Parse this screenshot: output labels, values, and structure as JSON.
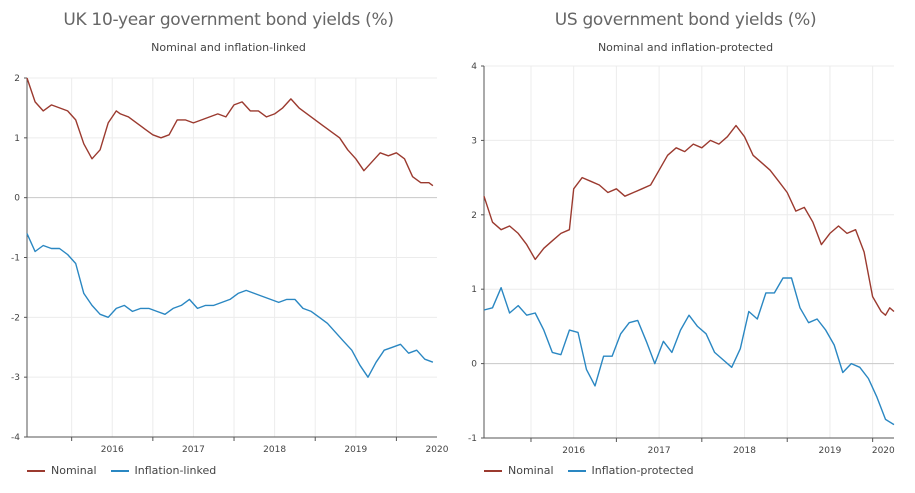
{
  "colors": {
    "nominal": "#9b3a2f",
    "inflation": "#2a87c2",
    "grid": "#ececec",
    "axis": "#555555"
  },
  "chart_data": [
    {
      "type": "line",
      "title": "UK 10-year government bond yields (%)",
      "subtitle": "Nominal and inflation-linked",
      "xlabel": "",
      "ylabel": "",
      "xlim": [
        2015.45,
        2020.5
      ],
      "ylim": [
        -4,
        2
      ],
      "y_ticks": [
        "2",
        "1",
        "0",
        "-1",
        "-2",
        "-3",
        "-4"
      ],
      "x_ticks": [
        "2016",
        "2017",
        "2018",
        "2019",
        "2020"
      ],
      "grid": true,
      "legend_position": "bottom-left",
      "series": [
        {
          "name": "Nominal",
          "x": [
            2015.45,
            2015.55,
            2015.65,
            2015.75,
            2015.85,
            2015.95,
            2016.05,
            2016.15,
            2016.25,
            2016.35,
            2016.45,
            2016.55,
            2016.6,
            2016.7,
            2016.8,
            2016.9,
            2017.0,
            2017.1,
            2017.2,
            2017.3,
            2017.4,
            2017.5,
            2017.6,
            2017.7,
            2017.8,
            2017.9,
            2018.0,
            2018.1,
            2018.2,
            2018.3,
            2018.4,
            2018.5,
            2018.6,
            2018.7,
            2018.8,
            2018.9,
            2019.0,
            2019.1,
            2019.2,
            2019.3,
            2019.4,
            2019.5,
            2019.6,
            2019.7,
            2019.8,
            2019.9,
            2020.0,
            2020.1,
            2020.2,
            2020.3,
            2020.4,
            2020.45
          ],
          "values": [
            2.0,
            1.6,
            1.45,
            1.55,
            1.5,
            1.45,
            1.3,
            0.9,
            0.65,
            0.8,
            1.25,
            1.45,
            1.4,
            1.35,
            1.25,
            1.15,
            1.05,
            1.0,
            1.05,
            1.3,
            1.3,
            1.25,
            1.3,
            1.35,
            1.4,
            1.35,
            1.55,
            1.6,
            1.45,
            1.45,
            1.35,
            1.4,
            1.5,
            1.65,
            1.5,
            1.4,
            1.3,
            1.2,
            1.1,
            1.0,
            0.8,
            0.65,
            0.45,
            0.6,
            0.75,
            0.7,
            0.75,
            0.65,
            0.35,
            0.25,
            0.25,
            0.2
          ]
        },
        {
          "name": "Inflation-linked",
          "x": [
            2015.45,
            2015.55,
            2015.65,
            2015.75,
            2015.85,
            2015.95,
            2016.05,
            2016.15,
            2016.25,
            2016.35,
            2016.45,
            2016.55,
            2016.65,
            2016.75,
            2016.85,
            2016.95,
            2017.05,
            2017.15,
            2017.25,
            2017.35,
            2017.45,
            2017.55,
            2017.65,
            2017.75,
            2017.85,
            2017.95,
            2018.05,
            2018.15,
            2018.25,
            2018.35,
            2018.45,
            2018.55,
            2018.65,
            2018.75,
            2018.85,
            2018.95,
            2019.05,
            2019.15,
            2019.25,
            2019.35,
            2019.45,
            2019.55,
            2019.65,
            2019.75,
            2019.85,
            2019.95,
            2020.05,
            2020.15,
            2020.25,
            2020.35,
            2020.45
          ],
          "values": [
            -0.6,
            -0.9,
            -0.8,
            -0.85,
            -0.85,
            -0.95,
            -1.1,
            -1.6,
            -1.8,
            -1.95,
            -2.0,
            -1.85,
            -1.8,
            -1.9,
            -1.85,
            -1.85,
            -1.9,
            -1.95,
            -1.85,
            -1.8,
            -1.7,
            -1.85,
            -1.8,
            -1.8,
            -1.75,
            -1.7,
            -1.6,
            -1.55,
            -1.6,
            -1.65,
            -1.7,
            -1.75,
            -1.7,
            -1.7,
            -1.85,
            -1.9,
            -2.0,
            -2.1,
            -2.25,
            -2.4,
            -2.55,
            -2.8,
            -3.0,
            -2.75,
            -2.55,
            -2.5,
            -2.45,
            -2.6,
            -2.55,
            -2.7,
            -2.75
          ]
        }
      ]
    },
    {
      "type": "line",
      "title": "US government bond yields (%)",
      "subtitle": "Nominal and inflation-protected",
      "xlabel": "",
      "ylabel": "",
      "xlim": [
        2015.45,
        2020.25
      ],
      "ylim": [
        -1,
        4
      ],
      "y_ticks": [
        "4",
        "3",
        "2",
        "1",
        "0",
        "-1"
      ],
      "x_ticks": [
        "2016",
        "2017",
        "2018",
        "2019",
        "2020"
      ],
      "grid": true,
      "legend_position": "bottom-left",
      "series": [
        {
          "name": "Nominal",
          "x": [
            2015.45,
            2015.55,
            2015.65,
            2015.75,
            2015.85,
            2015.95,
            2016.05,
            2016.15,
            2016.25,
            2016.35,
            2016.45,
            2016.5,
            2016.6,
            2016.7,
            2016.8,
            2016.9,
            2017.0,
            2017.1,
            2017.2,
            2017.3,
            2017.4,
            2017.5,
            2017.6,
            2017.7,
            2017.8,
            2017.9,
            2018.0,
            2018.1,
            2018.2,
            2018.3,
            2018.4,
            2018.5,
            2018.6,
            2018.7,
            2018.8,
            2018.9,
            2019.0,
            2019.1,
            2019.2,
            2019.3,
            2019.4,
            2019.5,
            2019.6,
            2019.7,
            2019.8,
            2019.9,
            2020.0,
            2020.1,
            2020.15,
            2020.2,
            2020.25
          ],
          "values": [
            2.25,
            1.9,
            1.8,
            1.85,
            1.75,
            1.6,
            1.4,
            1.55,
            1.65,
            1.75,
            1.8,
            2.35,
            2.5,
            2.45,
            2.4,
            2.3,
            2.35,
            2.25,
            2.3,
            2.35,
            2.4,
            2.6,
            2.8,
            2.9,
            2.85,
            2.95,
            2.9,
            3.0,
            2.95,
            3.05,
            3.2,
            3.05,
            2.8,
            2.7,
            2.6,
            2.45,
            2.3,
            2.05,
            2.1,
            1.9,
            1.6,
            1.75,
            1.85,
            1.75,
            1.8,
            1.5,
            0.9,
            0.7,
            0.65,
            0.75,
            0.7
          ]
        },
        {
          "name": "Inflation-protected",
          "x": [
            2015.45,
            2015.55,
            2015.65,
            2015.75,
            2015.85,
            2015.95,
            2016.05,
            2016.15,
            2016.25,
            2016.35,
            2016.45,
            2016.55,
            2016.65,
            2016.75,
            2016.85,
            2016.95,
            2017.05,
            2017.15,
            2017.25,
            2017.35,
            2017.45,
            2017.55,
            2017.65,
            2017.75,
            2017.85,
            2017.95,
            2018.05,
            2018.15,
            2018.25,
            2018.35,
            2018.45,
            2018.55,
            2018.65,
            2018.75,
            2018.85,
            2018.95,
            2019.05,
            2019.15,
            2019.25,
            2019.35,
            2019.45,
            2019.55,
            2019.65,
            2019.75,
            2019.85,
            2019.95,
            2020.05,
            2020.15,
            2020.25
          ],
          "values": [
            0.72,
            0.75,
            1.02,
            0.68,
            0.78,
            0.65,
            0.68,
            0.45,
            0.15,
            0.12,
            0.45,
            0.42,
            -0.08,
            -0.3,
            0.1,
            0.1,
            0.4,
            0.55,
            0.58,
            0.3,
            0.0,
            0.3,
            0.15,
            0.45,
            0.65,
            0.5,
            0.4,
            0.15,
            0.05,
            -0.05,
            0.2,
            0.7,
            0.6,
            0.95,
            0.95,
            1.15,
            1.15,
            0.75,
            0.55,
            0.6,
            0.45,
            0.25,
            -0.12,
            0.0,
            -0.05,
            -0.2,
            -0.45,
            -0.75,
            -0.82
          ]
        }
      ]
    }
  ]
}
